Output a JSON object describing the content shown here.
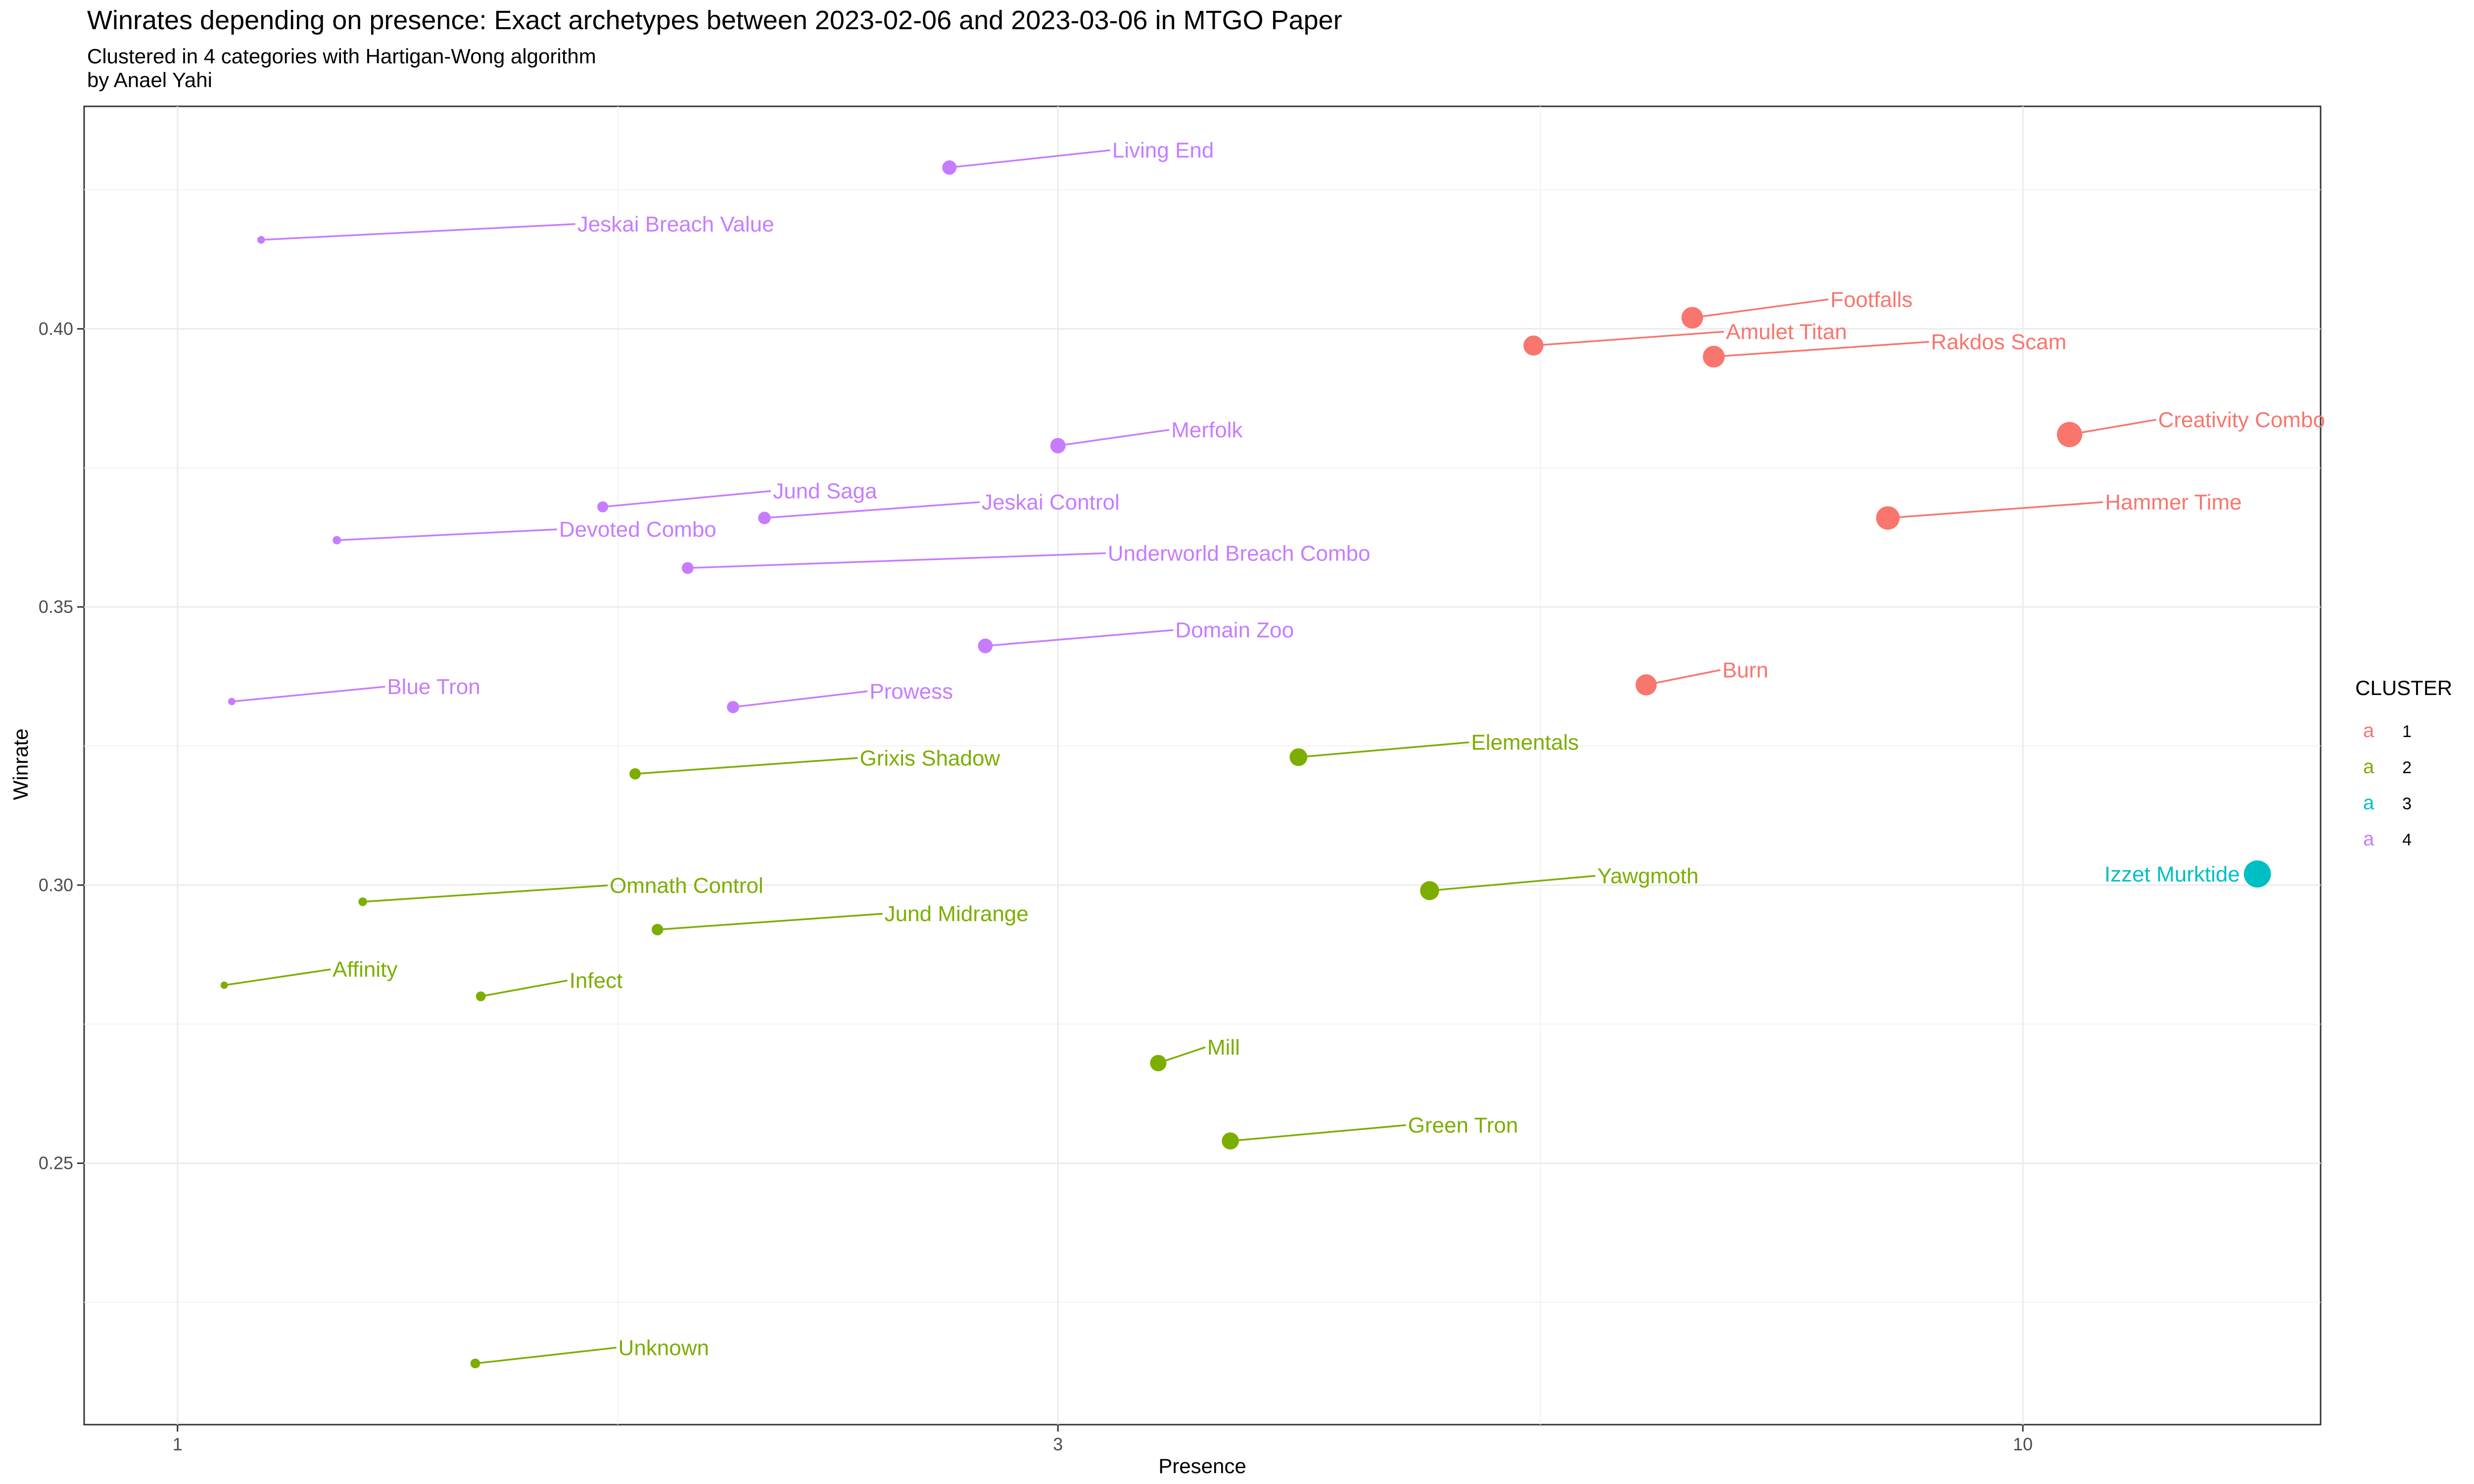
{
  "title": "Winrates depending on presence: Exact archetypes  between 2023-02-06 and 2023-03-06 in MTGO Paper",
  "subtitle_lines": [
    "Clustered in 4 categories with Hartigan-Wong algorithm",
    "by Anael Yahi"
  ],
  "chart_data": {
    "type": "scatter",
    "xlabel": "Presence",
    "ylabel": "Winrate",
    "x_scale": "log10",
    "xlim": [
      0.89,
      14.5
    ],
    "ylim": [
      0.203,
      0.44
    ],
    "x_ticks": [
      1,
      3,
      10
    ],
    "x_tick_labels": [
      "1",
      "3",
      "10"
    ],
    "y_ticks": [
      0.25,
      0.3,
      0.35,
      0.4
    ],
    "y_tick_labels": [
      "0.25",
      "0.30",
      "0.35",
      "0.40"
    ],
    "grid": true,
    "legend": {
      "title": "CLUSTER",
      "position": "right",
      "glyph": "a",
      "entries": [
        {
          "label": "1",
          "color": "#F8766D"
        },
        {
          "label": "2",
          "color": "#7CAE00"
        },
        {
          "label": "3",
          "color": "#00BFC4"
        },
        {
          "label": "4",
          "color": "#C77CFF"
        }
      ]
    },
    "points": [
      {
        "label": "Living End",
        "x": 2.62,
        "y": 0.429,
        "cluster": "4"
      },
      {
        "label": "Jeskai Breach Value",
        "x": 1.11,
        "y": 0.416,
        "cluster": "4"
      },
      {
        "label": "Footfalls",
        "x": 6.62,
        "y": 0.402,
        "cluster": "1"
      },
      {
        "label": "Amulet Titan",
        "x": 5.43,
        "y": 0.397,
        "cluster": "1"
      },
      {
        "label": "Rakdos Scam",
        "x": 6.8,
        "y": 0.395,
        "cluster": "1"
      },
      {
        "label": "Creativity Combo",
        "x": 10.6,
        "y": 0.381,
        "cluster": "1"
      },
      {
        "label": "Merfolk",
        "x": 3.0,
        "y": 0.379,
        "cluster": "4"
      },
      {
        "label": "Jund Saga",
        "x": 1.7,
        "y": 0.368,
        "cluster": "4"
      },
      {
        "label": "Jeskai Control",
        "x": 2.08,
        "y": 0.366,
        "cluster": "4"
      },
      {
        "label": "Hammer Time",
        "x": 8.45,
        "y": 0.366,
        "cluster": "1"
      },
      {
        "label": "Devoted Combo",
        "x": 1.22,
        "y": 0.362,
        "cluster": "4"
      },
      {
        "label": "Underworld Breach Combo",
        "x": 1.89,
        "y": 0.357,
        "cluster": "4"
      },
      {
        "label": "Domain Zoo",
        "x": 2.74,
        "y": 0.343,
        "cluster": "4"
      },
      {
        "label": "Burn",
        "x": 6.25,
        "y": 0.336,
        "cluster": "1"
      },
      {
        "label": "Blue Tron",
        "x": 1.07,
        "y": 0.333,
        "cluster": "4"
      },
      {
        "label": "Prowess",
        "x": 2.0,
        "y": 0.332,
        "cluster": "4"
      },
      {
        "label": "Elementals",
        "x": 4.05,
        "y": 0.323,
        "cluster": "2"
      },
      {
        "label": "Grixis Shadow",
        "x": 1.77,
        "y": 0.32,
        "cluster": "2"
      },
      {
        "label": "Izzet Murktide",
        "x": 13.4,
        "y": 0.302,
        "cluster": "3"
      },
      {
        "label": "Yawgmoth",
        "x": 4.77,
        "y": 0.299,
        "cluster": "2"
      },
      {
        "label": "Omnath Control",
        "x": 1.26,
        "y": 0.297,
        "cluster": "2"
      },
      {
        "label": "Jund Midrange",
        "x": 1.82,
        "y": 0.292,
        "cluster": "2"
      },
      {
        "label": "Affinity",
        "x": 1.06,
        "y": 0.282,
        "cluster": "2"
      },
      {
        "label": "Infect",
        "x": 1.46,
        "y": 0.28,
        "cluster": "2"
      },
      {
        "label": "Mill",
        "x": 3.4,
        "y": 0.268,
        "cluster": "2"
      },
      {
        "label": "Green Tron",
        "x": 3.72,
        "y": 0.254,
        "cluster": "2"
      },
      {
        "label": "Unknown",
        "x": 1.45,
        "y": 0.214,
        "cluster": "2"
      }
    ]
  }
}
